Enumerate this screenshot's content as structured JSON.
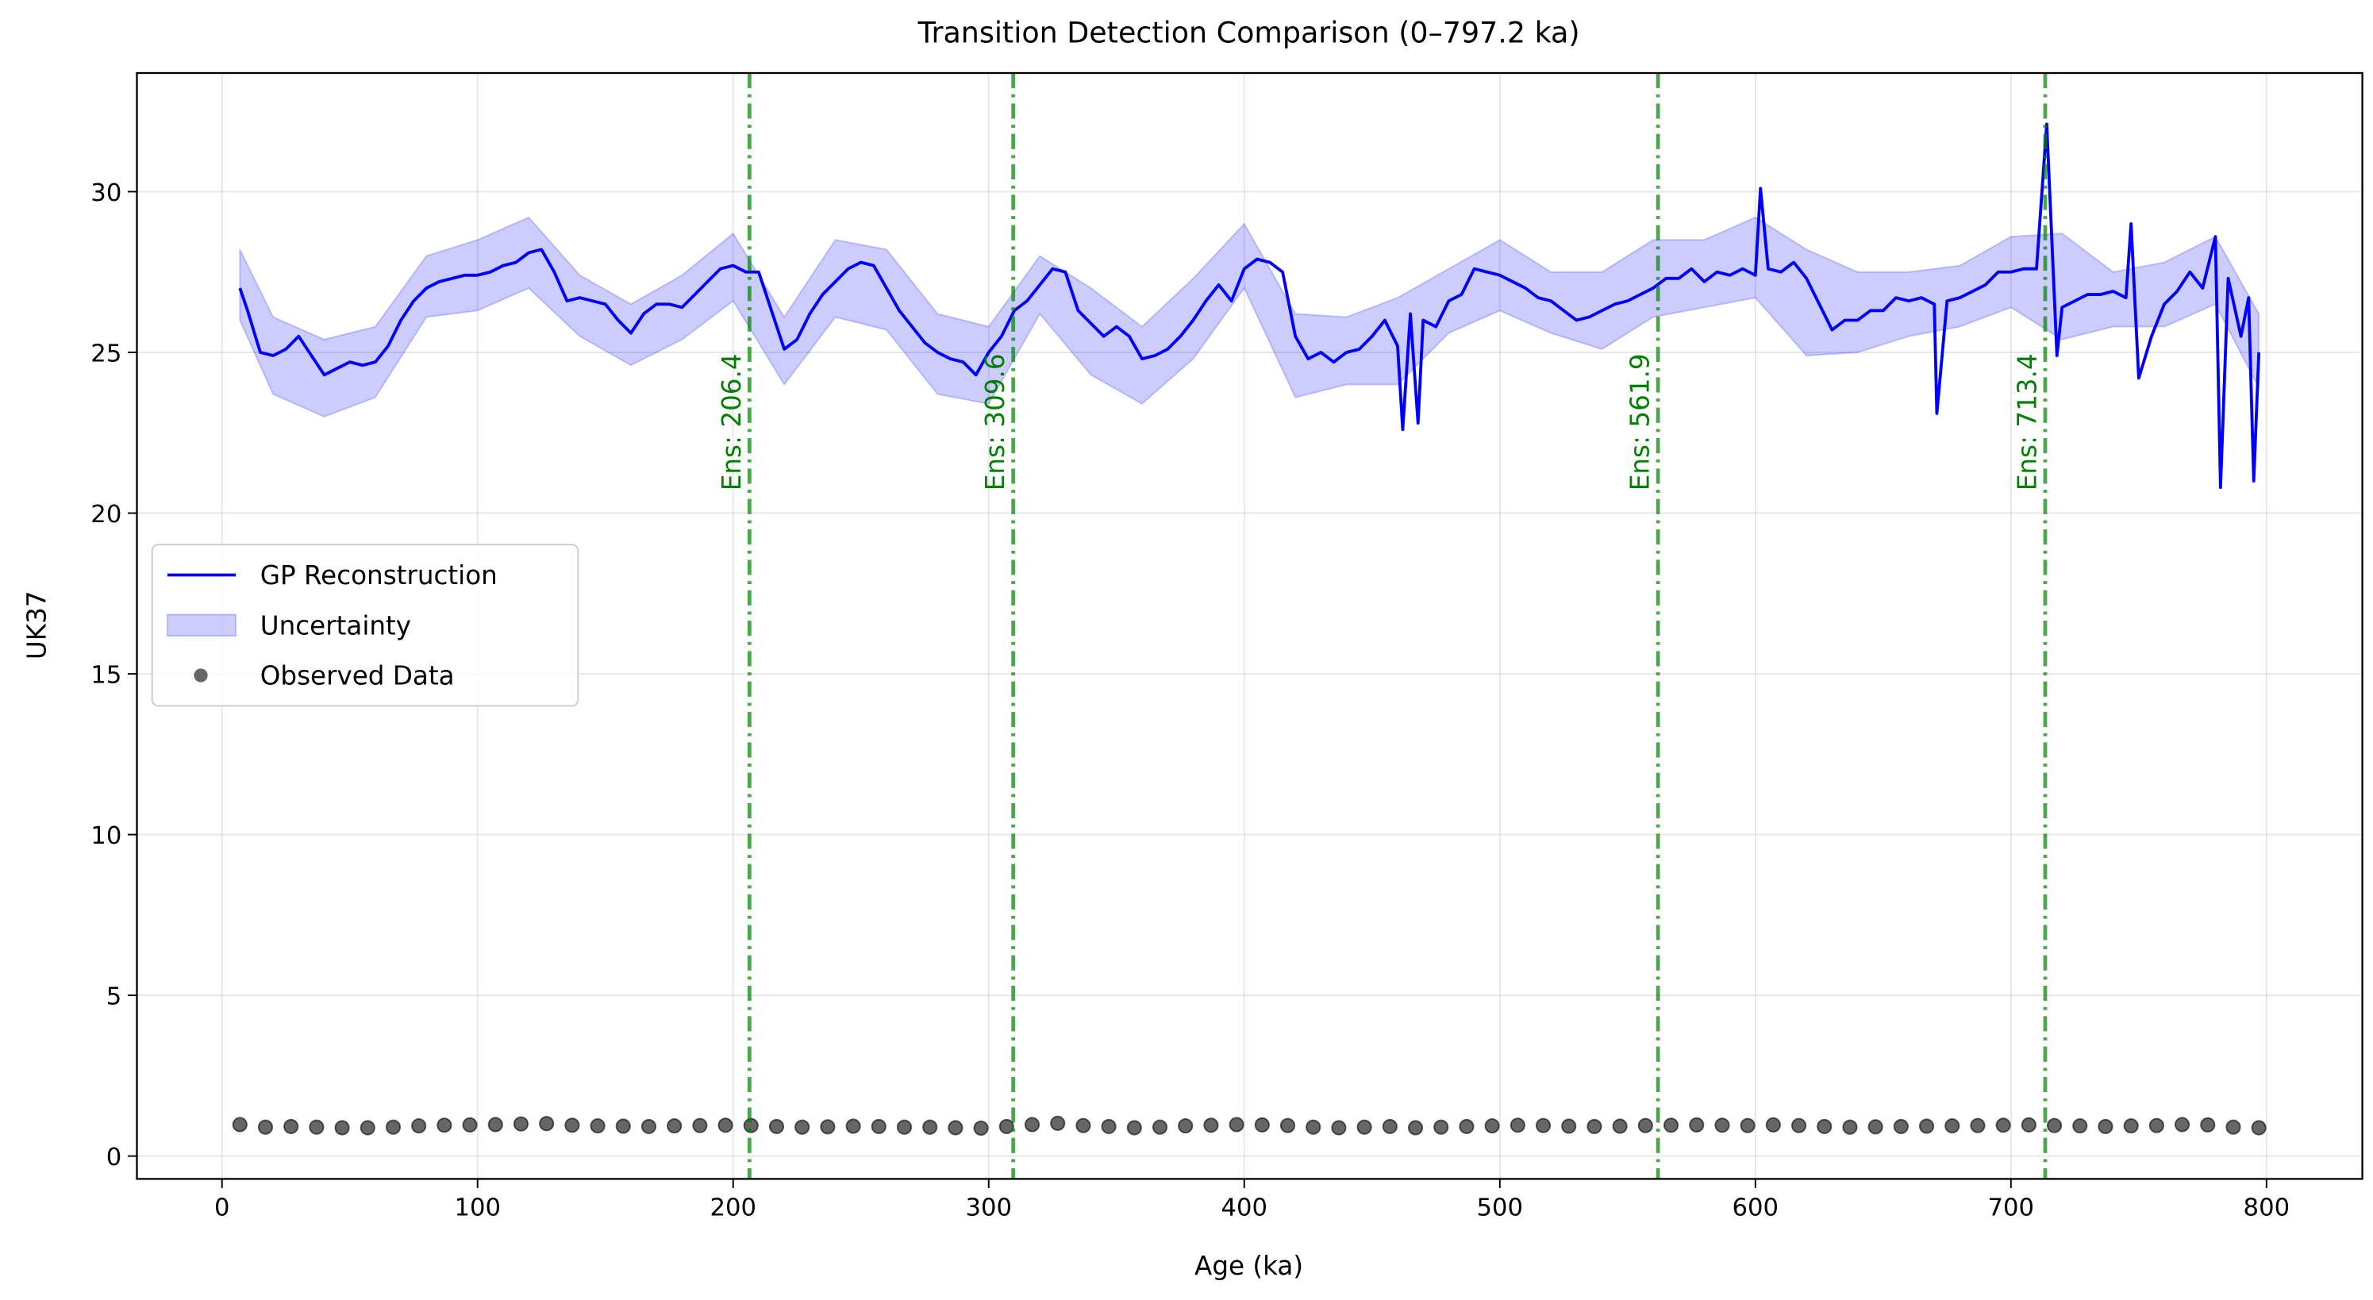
{
  "chart_data": {
    "type": "line",
    "title": "Transition Detection Comparison (0–797.2 ka)",
    "x_label": "Age (ka)",
    "y_label": "UK37",
    "xlim": [
      -33.3,
      837.5
    ],
    "ylim": [
      -0.71,
      33.69
    ],
    "xticks": [
      0,
      100,
      200,
      300,
      400,
      500,
      600,
      700,
      800
    ],
    "yticks": [
      0,
      5,
      10,
      15,
      20,
      25,
      30
    ],
    "grid": true,
    "legend": "center left",
    "series": [
      {
        "name": "GP Reconstruction",
        "type": "line",
        "color": "#0000ff",
        "x": [
          7,
          10,
          15,
          20,
          25,
          30,
          35,
          40,
          45,
          50,
          55,
          60,
          65,
          70,
          75,
          80,
          85,
          90,
          95,
          100,
          105,
          110,
          115,
          120,
          125,
          130,
          135,
          140,
          145,
          150,
          155,
          160,
          165,
          170,
          175,
          180,
          185,
          190,
          195,
          200,
          205,
          210,
          215,
          220,
          225,
          230,
          235,
          240,
          245,
          250,
          255,
          260,
          265,
          270,
          275,
          280,
          285,
          290,
          295,
          300,
          305,
          310,
          315,
          320,
          325,
          330,
          335,
          340,
          345,
          350,
          355,
          360,
          365,
          370,
          375,
          380,
          385,
          390,
          395,
          400,
          405,
          410,
          415,
          420,
          425,
          430,
          435,
          440,
          445,
          450,
          455,
          460,
          462,
          465,
          468,
          470,
          475,
          480,
          485,
          490,
          495,
          500,
          505,
          510,
          515,
          520,
          525,
          530,
          535,
          540,
          545,
          550,
          555,
          560,
          565,
          570,
          575,
          580,
          585,
          590,
          595,
          600,
          602,
          605,
          610,
          615,
          620,
          625,
          630,
          635,
          640,
          645,
          650,
          655,
          660,
          665,
          670,
          671,
          675,
          680,
          685,
          690,
          695,
          700,
          705,
          710,
          714,
          718,
          720,
          725,
          730,
          735,
          740,
          745,
          747,
          750,
          755,
          760,
          765,
          770,
          775,
          780,
          782,
          785,
          790,
          793,
          795,
          797
        ],
        "values": [
          27.0,
          26.3,
          25.0,
          24.9,
          25.1,
          25.5,
          24.9,
          24.3,
          24.5,
          24.7,
          24.6,
          24.7,
          25.2,
          26.0,
          26.6,
          27.0,
          27.2,
          27.3,
          27.4,
          27.4,
          27.5,
          27.7,
          27.8,
          28.1,
          28.2,
          27.5,
          26.6,
          26.7,
          26.6,
          26.5,
          26.0,
          25.6,
          26.2,
          26.5,
          26.5,
          26.4,
          26.8,
          27.2,
          27.6,
          27.7,
          27.5,
          27.5,
          26.3,
          25.1,
          25.4,
          26.2,
          26.8,
          27.2,
          27.6,
          27.8,
          27.7,
          27.0,
          26.3,
          25.8,
          25.3,
          25.0,
          24.8,
          24.7,
          24.3,
          25.0,
          25.5,
          26.3,
          26.6,
          27.1,
          27.6,
          27.5,
          26.3,
          25.9,
          25.5,
          25.8,
          25.5,
          24.8,
          24.9,
          25.1,
          25.5,
          26.0,
          26.6,
          27.1,
          26.6,
          27.6,
          27.9,
          27.8,
          27.5,
          25.5,
          24.8,
          25.0,
          24.7,
          25.0,
          25.1,
          25.5,
          26.0,
          25.2,
          22.6,
          26.2,
          22.8,
          26.0,
          25.8,
          26.6,
          26.8,
          27.6,
          27.5,
          27.4,
          27.2,
          27.0,
          26.7,
          26.6,
          26.3,
          26.0,
          26.1,
          26.3,
          26.5,
          26.6,
          26.8,
          27.0,
          27.3,
          27.3,
          27.6,
          27.2,
          27.5,
          27.4,
          27.6,
          27.4,
          30.1,
          27.6,
          27.5,
          27.8,
          27.3,
          26.5,
          25.7,
          26.0,
          26.0,
          26.3,
          26.3,
          26.7,
          26.6,
          26.7,
          26.5,
          23.1,
          26.6,
          26.7,
          26.9,
          27.1,
          27.5,
          27.5,
          27.6,
          27.6,
          32.1,
          24.9,
          26.4,
          26.6,
          26.8,
          26.8,
          26.9,
          26.7,
          29.0,
          24.2,
          25.5,
          26.5,
          26.9,
          27.5,
          27.0,
          28.6,
          20.8,
          27.3,
          25.5,
          26.7,
          21.0,
          25.0
        ]
      },
      {
        "name": "Uncertainty",
        "type": "band",
        "color": "#0000ff",
        "x": [
          7,
          20,
          40,
          60,
          80,
          100,
          120,
          140,
          160,
          180,
          200,
          220,
          240,
          260,
          280,
          300,
          320,
          340,
          360,
          380,
          400,
          420,
          440,
          460,
          480,
          500,
          520,
          540,
          560,
          580,
          600,
          620,
          640,
          660,
          680,
          700,
          720,
          740,
          760,
          780,
          797
        ],
        "upper": [
          28.2,
          26.1,
          25.4,
          25.8,
          28.0,
          28.5,
          29.2,
          27.4,
          26.5,
          27.4,
          28.7,
          26.1,
          28.5,
          28.2,
          26.2,
          25.8,
          28.0,
          27.0,
          25.8,
          27.3,
          29.0,
          26.2,
          26.1,
          26.7,
          27.6,
          28.5,
          27.5,
          27.5,
          28.5,
          28.5,
          29.2,
          28.2,
          27.5,
          27.5,
          27.7,
          28.6,
          28.7,
          27.5,
          27.8,
          28.6,
          26.2
        ],
        "lower": [
          26.0,
          23.7,
          23.0,
          23.6,
          26.1,
          26.3,
          27.0,
          25.5,
          24.6,
          25.4,
          26.6,
          24.0,
          26.1,
          25.7,
          23.7,
          23.4,
          26.2,
          24.3,
          23.4,
          24.8,
          27.0,
          23.6,
          24.0,
          24.0,
          25.6,
          26.3,
          25.6,
          25.1,
          26.1,
          26.4,
          26.7,
          24.9,
          25.0,
          25.5,
          25.8,
          26.4,
          25.4,
          25.8,
          25.8,
          26.5,
          23.9
        ]
      },
      {
        "name": "Observed Data",
        "type": "scatter",
        "color": "#000000",
        "x": [
          7,
          17,
          27,
          37,
          47,
          57,
          67,
          77,
          87,
          97,
          107,
          117,
          127,
          137,
          147,
          157,
          167,
          177,
          187,
          197,
          207,
          217,
          227,
          237,
          247,
          257,
          267,
          277,
          287,
          297,
          307,
          317,
          327,
          337,
          347,
          357,
          367,
          377,
          387,
          397,
          407,
          417,
          427,
          437,
          447,
          457,
          467,
          477,
          487,
          497,
          507,
          517,
          527,
          537,
          547,
          557,
          567,
          577,
          587,
          597,
          607,
          617,
          627,
          637,
          647,
          657,
          667,
          677,
          687,
          697,
          707,
          717,
          727,
          737,
          747,
          757,
          767,
          777,
          787,
          797
        ],
        "values": [
          0.98,
          0.9,
          0.92,
          0.9,
          0.88,
          0.88,
          0.9,
          0.94,
          0.96,
          0.97,
          0.98,
          1.0,
          1.01,
          0.96,
          0.94,
          0.93,
          0.92,
          0.94,
          0.95,
          0.96,
          0.95,
          0.92,
          0.9,
          0.91,
          0.93,
          0.92,
          0.9,
          0.9,
          0.88,
          0.87,
          0.92,
          0.98,
          1.02,
          0.95,
          0.92,
          0.88,
          0.9,
          0.94,
          0.96,
          0.98,
          0.97,
          0.95,
          0.9,
          0.88,
          0.9,
          0.92,
          0.88,
          0.9,
          0.92,
          0.94,
          0.96,
          0.95,
          0.93,
          0.92,
          0.93,
          0.95,
          0.96,
          0.97,
          0.96,
          0.95,
          0.97,
          0.95,
          0.92,
          0.9,
          0.91,
          0.92,
          0.93,
          0.94,
          0.95,
          0.96,
          0.97,
          0.95,
          0.94,
          0.92,
          0.94,
          0.95,
          0.98,
          0.97,
          0.9,
          0.88
        ]
      }
    ],
    "vlines": {
      "color": "#008000",
      "lines": [
        {
          "value": 206.4,
          "label": "Ens: 206.4"
        },
        {
          "value": 309.6,
          "label": "Ens: 309.6"
        },
        {
          "value": 561.9,
          "label": "Ens: 561.9"
        },
        {
          "value": 713.4,
          "label": "Ens: 713.4"
        }
      ]
    }
  }
}
